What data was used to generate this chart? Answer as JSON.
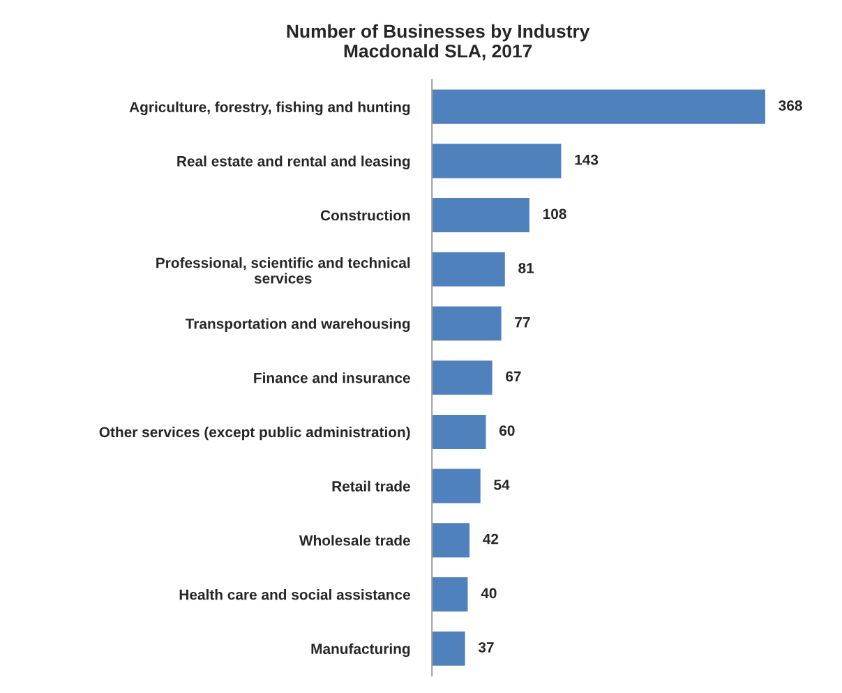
{
  "chart_data": {
    "type": "bar",
    "orientation": "horizontal",
    "title": "Number of Businesses by Industry\nMacdonald SLA, 2017",
    "categories": [
      "Agriculture, forestry, fishing and hunting",
      "Real estate and rental and leasing",
      "Construction",
      "Professional, scientific and technical\nservices",
      "Transportation and warehousing",
      "Finance and insurance",
      "Other services (except public administration)",
      "Retail trade",
      "Wholesale trade",
      "Health care and social assistance",
      "Manufacturing"
    ],
    "values": [
      368,
      143,
      108,
      81,
      77,
      67,
      60,
      54,
      42,
      40,
      37
    ],
    "color": "#4f81bd",
    "data_labels": true,
    "grid": false,
    "legend": false,
    "tick_labels": "y"
  }
}
